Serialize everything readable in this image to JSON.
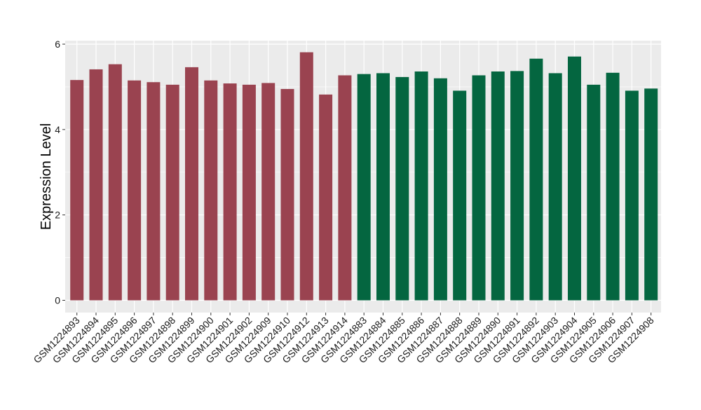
{
  "chart_data": {
    "type": "bar",
    "title": "",
    "xlabel": "",
    "ylabel": "Expression Level",
    "ylim": [
      0,
      6.05
    ],
    "y_ticks": [
      "0",
      "2",
      "4",
      "6"
    ],
    "grid": true,
    "categories": [
      "GSM1224893",
      "GSM1224894",
      "GSM1224895",
      "GSM1224896",
      "GSM1224897",
      "GSM1224898",
      "GSM1224899",
      "GSM1224900",
      "GSM1224901",
      "GSM1224902",
      "GSM1224909",
      "GSM1224910",
      "GSM1224912",
      "GSM1224913",
      "GSM1224914",
      "GSM1224883",
      "GSM1224884",
      "GSM1224885",
      "GSM1224886",
      "GSM1224887",
      "GSM1224888",
      "GSM1224889",
      "GSM1224890",
      "GSM1224891",
      "GSM1224892",
      "GSM1224903",
      "GSM1224904",
      "GSM1224905",
      "GSM1224906",
      "GSM1224907",
      "GSM1224908"
    ],
    "values": [
      5.16,
      5.41,
      5.53,
      5.15,
      5.11,
      5.05,
      5.46,
      5.15,
      5.08,
      5.05,
      5.09,
      4.95,
      5.81,
      4.82,
      5.27,
      5.3,
      5.32,
      5.23,
      5.36,
      5.2,
      4.91,
      5.27,
      5.36,
      5.37,
      5.66,
      5.32,
      5.71,
      5.05,
      5.33,
      4.91,
      4.96
    ],
    "bar_colors": [
      "#9a4350",
      "#9a4350",
      "#9a4350",
      "#9a4350",
      "#9a4350",
      "#9a4350",
      "#9a4350",
      "#9a4350",
      "#9a4350",
      "#9a4350",
      "#9a4350",
      "#9a4350",
      "#9a4350",
      "#9a4350",
      "#9a4350",
      "#046640",
      "#046640",
      "#046640",
      "#046640",
      "#046640",
      "#046640",
      "#046640",
      "#046640",
      "#046640",
      "#046640",
      "#046640",
      "#046640",
      "#046640",
      "#046640",
      "#046640",
      "#046640"
    ],
    "colors": {
      "group_1": "#9a4350",
      "group_2": "#046640",
      "panel_background": "#ebebeb",
      "gridline": "#ffffff",
      "axis_text": "#1a1a1a"
    }
  }
}
